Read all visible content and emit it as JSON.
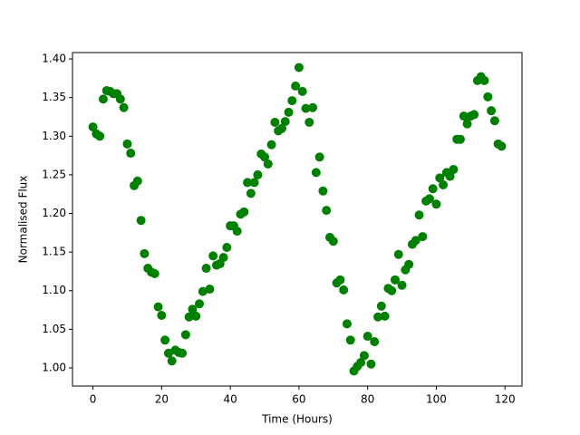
{
  "chart_data": {
    "type": "scatter",
    "x_label": "Time (Hours)",
    "y_label": "Normalised Flux",
    "color": "#008000",
    "x": [
      0,
      1,
      2,
      3,
      4,
      5,
      6,
      7,
      8,
      9,
      10,
      11,
      12,
      13,
      14,
      15,
      16,
      17,
      18,
      19,
      20,
      21,
      22,
      23,
      24,
      25,
      26,
      27,
      28,
      29,
      30,
      31,
      32,
      33,
      34,
      35,
      36,
      37,
      38,
      39,
      40,
      41,
      42,
      43,
      44,
      45,
      46,
      47,
      48,
      49,
      50,
      51,
      52,
      53,
      54,
      55,
      56,
      57,
      58,
      59,
      60,
      61,
      62,
      63,
      64,
      65,
      66,
      67,
      68,
      69,
      70,
      71,
      72,
      73,
      74,
      75,
      76,
      77,
      78,
      79,
      80,
      81,
      82,
      83,
      84,
      85,
      86,
      87,
      88,
      89,
      90,
      91,
      92,
      93,
      94,
      95,
      96,
      97,
      98,
      99,
      100,
      101,
      102,
      103,
      104,
      105,
      106,
      107,
      108,
      109,
      110,
      111,
      112,
      113,
      114,
      115,
      116,
      117,
      118,
      119
    ],
    "values": [
      1.312,
      1.303,
      1.3,
      1.348,
      1.359,
      1.358,
      1.355,
      1.355,
      1.348,
      1.337,
      1.29,
      1.278,
      1.236,
      1.242,
      1.191,
      1.148,
      1.129,
      1.124,
      1.122,
      1.079,
      1.068,
      1.036,
      1.019,
      1.009,
      1.023,
      1.02,
      1.019,
      1.043,
      1.066,
      1.076,
      1.067,
      1.083,
      1.099,
      1.129,
      1.102,
      1.145,
      1.133,
      1.135,
      1.143,
      1.156,
      1.184,
      1.184,
      1.177,
      1.199,
      1.202,
      1.24,
      1.226,
      1.24,
      1.25,
      1.277,
      1.273,
      1.264,
      1.289,
      1.318,
      1.307,
      1.31,
      1.319,
      1.331,
      1.346,
      1.365,
      1.389,
      1.358,
      1.336,
      1.318,
      1.337,
      1.253,
      1.273,
      1.229,
      1.204,
      1.169,
      1.164,
      1.11,
      1.114,
      1.101,
      1.057,
      1.036,
      0.996,
      1.002,
      1.007,
      1.016,
      1.041,
      1.005,
      1.034,
      1.066,
      1.08,
      1.067,
      1.103,
      1.1,
      1.114,
      1.147,
      1.107,
      1.127,
      1.134,
      1.16,
      1.165,
      1.198,
      1.17,
      1.216,
      1.219,
      1.232,
      1.212,
      1.246,
      1.237,
      1.253,
      1.248,
      1.257,
      1.296,
      1.296,
      1.326,
      1.316,
      1.326,
      1.328,
      1.372,
      1.377,
      1.372,
      1.351,
      1.333,
      1.32,
      1.29,
      1.287
    ],
    "xlim": [
      -5.95,
      124.95
    ],
    "xticks": [
      0,
      20,
      40,
      60,
      80,
      100,
      120
    ],
    "ylim": [
      0.9765,
      1.4083
    ],
    "yticks": [
      {
        "value": 1,
        "label": "1.00"
      },
      1.05,
      {
        "value": 1.1,
        "label": "1.10"
      },
      1.15,
      {
        "value": 1.2,
        "label": "1.20"
      },
      1.25,
      {
        "value": 1.3,
        "label": "1.30"
      },
      1.35,
      {
        "value": 1.4,
        "label": "1.40"
      }
    ]
  }
}
